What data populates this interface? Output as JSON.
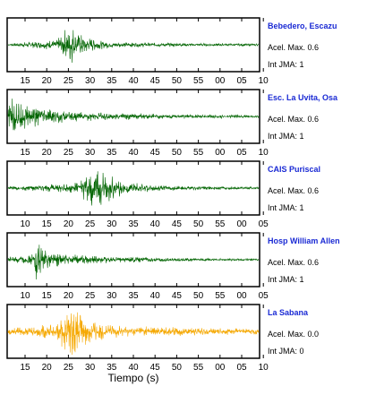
{
  "chart_data": {
    "type": "line",
    "xlabel": "Tiempo (s)",
    "panels": [
      {
        "station": "Bebedero, Escazu",
        "acel_text": "Acel. Max. 0.6",
        "jma_text": "Int JMA: 1",
        "color": "#006400",
        "ticks": [
          "15",
          "20",
          "25",
          "30",
          "35",
          "40",
          "45",
          "50",
          "55",
          "00",
          "05",
          "10"
        ],
        "series": [
          {
            "x": [
              0,
              2,
              4,
              6,
              8,
              10,
              10.5,
              11,
              11.5,
              12,
              12.5,
              13,
              13.5,
              14,
              14.5,
              15,
              16,
              17,
              18,
              19,
              20,
              22,
              24,
              26,
              28,
              30,
              32,
              34,
              36,
              38,
              40,
              42,
              44,
              46,
              48,
              50
            ],
            "y": [
              0.05,
              0.08,
              0.12,
              0.15,
              0.2,
              0.25,
              0.45,
              -0.55,
              0.7,
              -0.8,
              0.9,
              -0.75,
              0.6,
              -0.5,
              0.45,
              -0.4,
              0.3,
              -0.25,
              0.2,
              -0.18,
              0.15,
              -0.12,
              0.1,
              -0.1,
              0.09,
              -0.08,
              0.08,
              -0.07,
              0.07,
              -0.06,
              0.06,
              -0.06,
              0.05,
              -0.05,
              0.05,
              -0.05
            ]
          }
        ]
      },
      {
        "station": "Esc. La Uvita, Osa",
        "acel_text": "Acel. Max. 0.6",
        "jma_text": "Int JMA: 1",
        "color": "#006400",
        "ticks": [
          "15",
          "20",
          "25",
          "30",
          "35",
          "40",
          "45",
          "50",
          "55",
          "00",
          "05",
          "10"
        ],
        "series": [
          {
            "x": [
              0,
              0.5,
              1,
              1.5,
              2,
              2.5,
              3,
              4,
              5,
              6,
              7,
              8,
              10,
              12,
              14,
              16,
              18,
              20,
              24,
              28,
              32,
              36,
              40,
              44,
              48,
              50
            ],
            "y": [
              0.2,
              0.9,
              -1,
              0.85,
              -0.75,
              0.7,
              -0.6,
              0.5,
              -0.45,
              0.4,
              -0.35,
              0.3,
              -0.28,
              0.25,
              -0.22,
              0.2,
              -0.18,
              0.16,
              -0.14,
              0.12,
              -0.1,
              0.09,
              -0.08,
              0.07,
              -0.06,
              0.05
            ]
          }
        ]
      },
      {
        "station": "CAIS Puriscal",
        "acel_text": "Acel. Max. 0.6",
        "jma_text": "Int JMA: 1",
        "color": "#006400",
        "ticks": [
          "10",
          "15",
          "20",
          "25",
          "30",
          "35",
          "40",
          "45",
          "50",
          "55",
          "00",
          "05"
        ],
        "series": [
          {
            "x": [
              0,
              4,
              8,
              12,
              14,
              15,
              16,
              17,
              18,
              19,
              20,
              21,
              22,
              24,
              26,
              28,
              30,
              34,
              38,
              42,
              46,
              50
            ],
            "y": [
              0.08,
              0.12,
              0.15,
              0.2,
              0.3,
              0.5,
              -0.7,
              0.9,
              -0.85,
              0.7,
              -0.6,
              0.45,
              -0.35,
              0.25,
              -0.2,
              0.15,
              -0.12,
              0.1,
              -0.08,
              0.07,
              -0.06,
              0.05
            ]
          }
        ]
      },
      {
        "station": "Hosp William Allen",
        "acel_text": "Acel. Max. 0.6",
        "jma_text": "Int JMA: 1",
        "color": "#006400",
        "ticks": [
          "10",
          "15",
          "20",
          "25",
          "30",
          "35",
          "40",
          "45",
          "50",
          "55",
          "00",
          "05"
        ],
        "series": [
          {
            "x": [
              0,
              2,
              4,
              5,
              5.5,
              6,
              6.5,
              7,
              8,
              9,
              10,
              12,
              14,
              16,
              20,
              24,
              28,
              32,
              36,
              40,
              44,
              48,
              50
            ],
            "y": [
              0.1,
              0.15,
              0.2,
              0.4,
              0.95,
              -0.7,
              0.6,
              -0.5,
              0.45,
              -0.35,
              0.3,
              -0.25,
              0.2,
              -0.18,
              0.14,
              -0.12,
              0.1,
              -0.08,
              0.07,
              -0.06,
              0.05,
              -0.05,
              0.04
            ]
          }
        ]
      },
      {
        "station": "La Sabana",
        "acel_text": "Acel. Max. 0.0",
        "jma_text": "Int JMA: 0",
        "color": "#f5a800",
        "ticks": [
          "15",
          "20",
          "25",
          "30",
          "35",
          "40",
          "45",
          "50",
          "55",
          "00",
          "05",
          "10"
        ],
        "series": [
          {
            "x": [
              0,
              4,
              8,
              10,
              11,
              12,
              13,
              14,
              15,
              16,
              17,
              18,
              20,
              24,
              28,
              32,
              36,
              40,
              44,
              48,
              50
            ],
            "y": [
              0.15,
              0.2,
              0.3,
              0.45,
              0.7,
              -0.9,
              1,
              -0.85,
              0.8,
              -0.6,
              0.5,
              -0.4,
              0.3,
              -0.25,
              0.22,
              -0.2,
              0.18,
              -0.15,
              0.14,
              -0.12,
              0.12
            ]
          }
        ]
      }
    ]
  }
}
